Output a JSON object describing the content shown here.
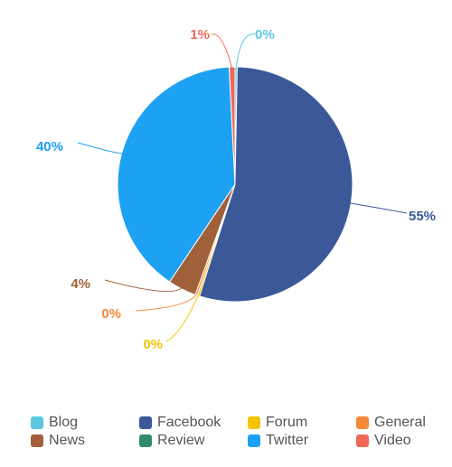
{
  "chart_data": {
    "type": "pie",
    "title": "",
    "legend_position": "bottom",
    "slices": [
      {
        "name": "Blog",
        "value": 0.3,
        "label": "0%",
        "color": "#5bc8e0"
      },
      {
        "name": "Facebook",
        "value": 54.6,
        "label": "55%",
        "color": "#3b5998"
      },
      {
        "name": "Forum",
        "value": 0.3,
        "label": "0%",
        "color": "#f5c400"
      },
      {
        "name": "General",
        "value": 0.3,
        "label": "0%",
        "color": "#f5883a"
      },
      {
        "name": "News",
        "value": 3.9,
        "label": "4%",
        "color": "#a0603a"
      },
      {
        "name": "Review",
        "value": 0.0,
        "label": "",
        "color": "#2e8b6e"
      },
      {
        "name": "Twitter",
        "value": 39.8,
        "label": "40%",
        "color": "#1da1f2"
      },
      {
        "name": "Video",
        "value": 0.8,
        "label": "1%",
        "color": "#f0685a"
      }
    ]
  }
}
